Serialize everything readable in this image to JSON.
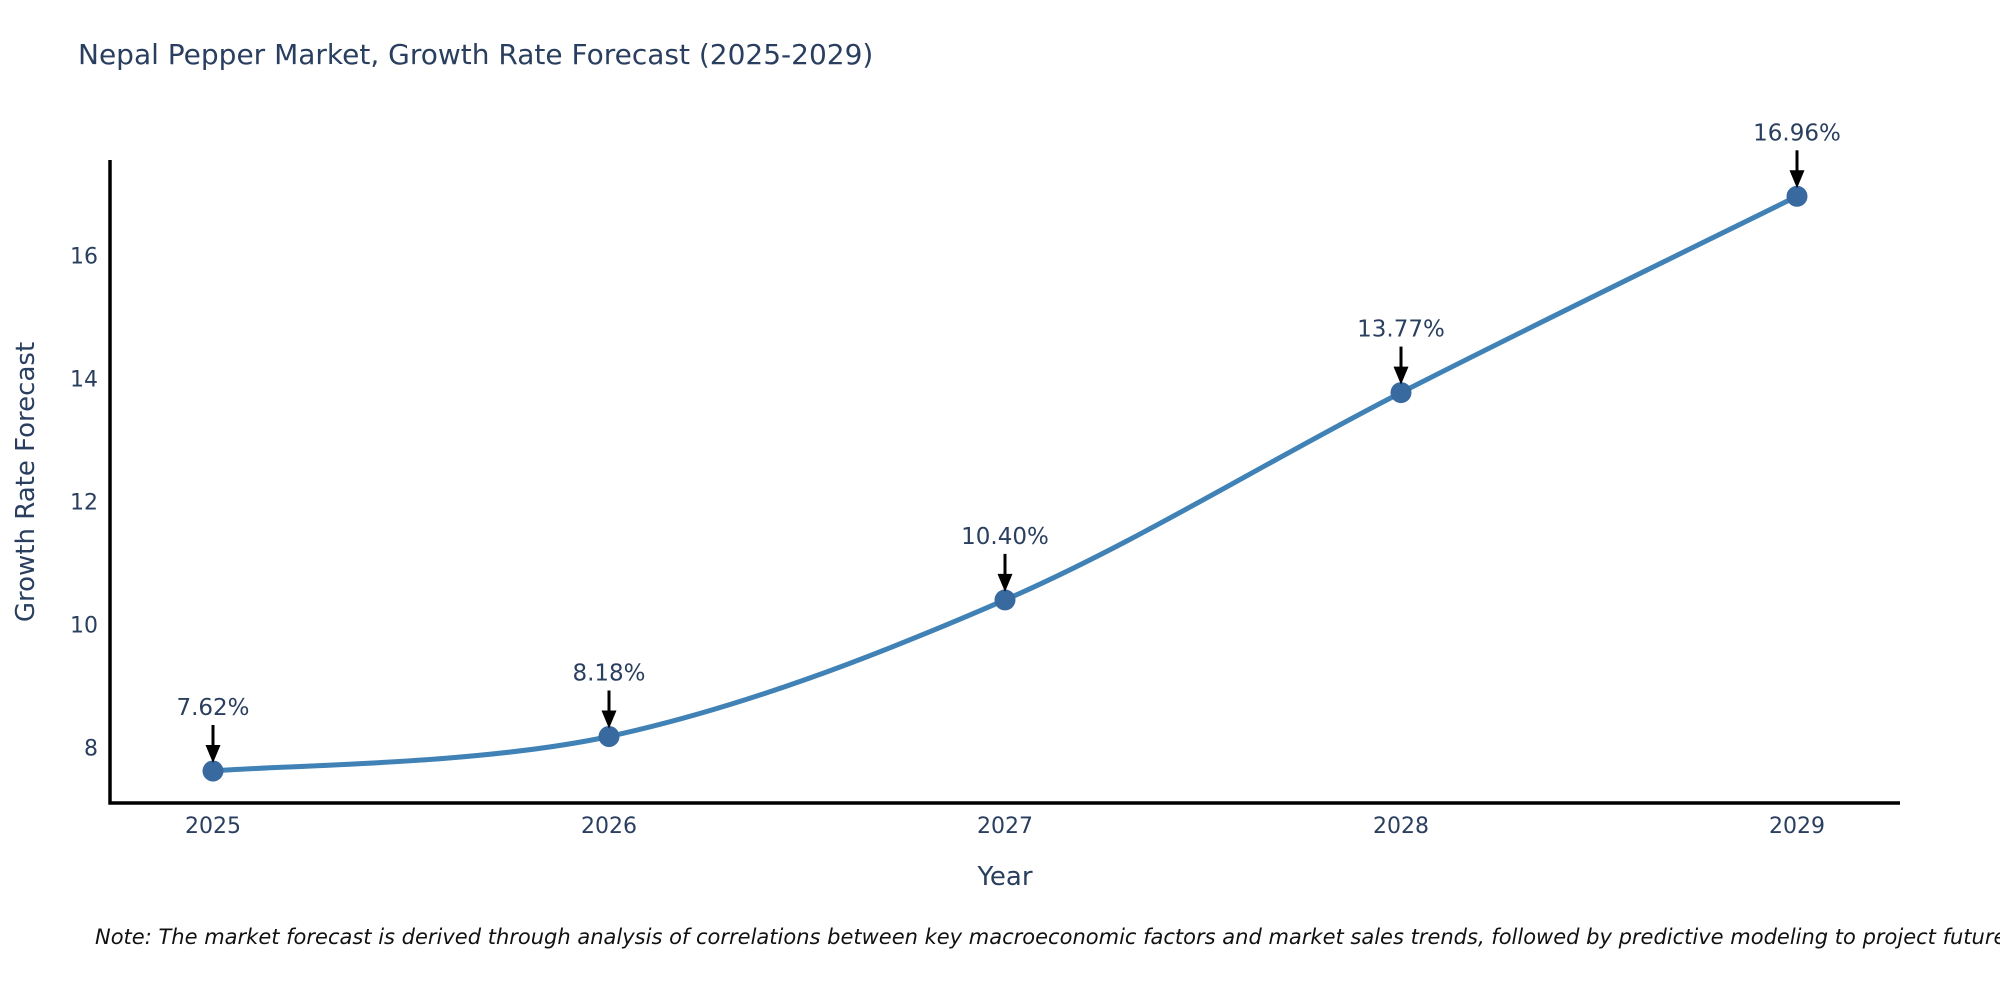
{
  "header": {
    "title": "Nepal Pepper Market, Growth Rate Forecast (2025-2029)"
  },
  "footnote": {
    "text": "Note: The market forecast is derived through analysis of correlations between key macroeconomic factors and market sales trends, followed by predictive modeling to project future sales."
  },
  "chart_data": {
    "type": "line",
    "title": "Nepal Pepper Market, Growth Rate Forecast (2025-2029)",
    "xlabel": "Year",
    "ylabel": "Growth Rate Forecast",
    "categories": [
      "2025",
      "2026",
      "2027",
      "2028",
      "2029"
    ],
    "series": [
      {
        "name": "Growth Rate Forecast",
        "values": [
          7.62,
          8.18,
          10.4,
          13.77,
          16.96
        ],
        "point_labels": [
          "7.62%",
          "8.18%",
          "10.40%",
          "13.77%",
          "16.96%"
        ]
      }
    ],
    "yticks": [
      8,
      10,
      12,
      14,
      16
    ],
    "ylim": [
      7.1,
      17.55
    ],
    "grid": false,
    "legend": "none",
    "line_shape": "spline",
    "annotations": "value labels with downward black arrows at each point",
    "colors": {
      "line": "#4182b6",
      "marker": "#38699f",
      "annotation_text": "#2a3f5f",
      "annotation_arrow": "#000000",
      "axis_text": "#2a3f5f",
      "spine": "#000000",
      "title": "#2a3f5f",
      "note_text": "#111111"
    }
  }
}
